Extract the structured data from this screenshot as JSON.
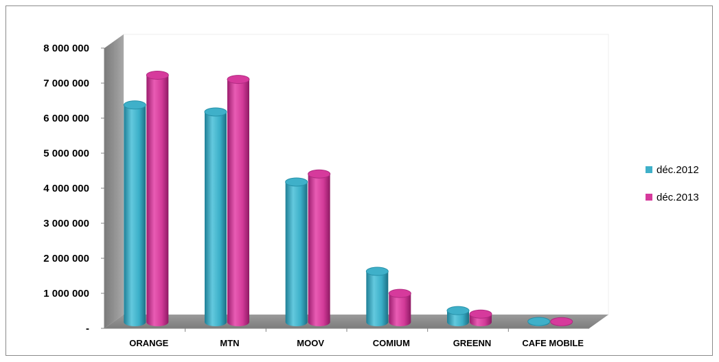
{
  "chart_data": {
    "type": "bar",
    "title": "",
    "xlabel": "",
    "ylabel": "",
    "categories": [
      "ORANGE",
      "MTN",
      "MOOV",
      "COMIUM",
      "GREENN",
      "CAFE MOBILE"
    ],
    "series": [
      {
        "name": "déc.2012",
        "color": "#3fb0c9",
        "values": [
          6200000,
          6000000,
          4000000,
          1450000,
          330000,
          20000
        ]
      },
      {
        "name": "déc.2013",
        "color": "#d63a9c",
        "values": [
          7050000,
          6930000,
          4230000,
          820000,
          230000,
          15000
        ]
      }
    ],
    "ylim": [
      0,
      8000000
    ],
    "y_ticks": [
      {
        "value": 0,
        "label": "-"
      },
      {
        "value": 1000000,
        "label": "1 000 000"
      },
      {
        "value": 2000000,
        "label": "2 000 000"
      },
      {
        "value": 3000000,
        "label": "3 000 000"
      },
      {
        "value": 4000000,
        "label": "4 000 000"
      },
      {
        "value": 5000000,
        "label": "5 000 000"
      },
      {
        "value": 6000000,
        "label": "6 000 000"
      },
      {
        "value": 7000000,
        "label": "7 000 000"
      },
      {
        "value": 8000000,
        "label": "8 000 000"
      }
    ],
    "grid": false,
    "legend": {
      "position": "right"
    },
    "style": "3d-cylinder"
  }
}
